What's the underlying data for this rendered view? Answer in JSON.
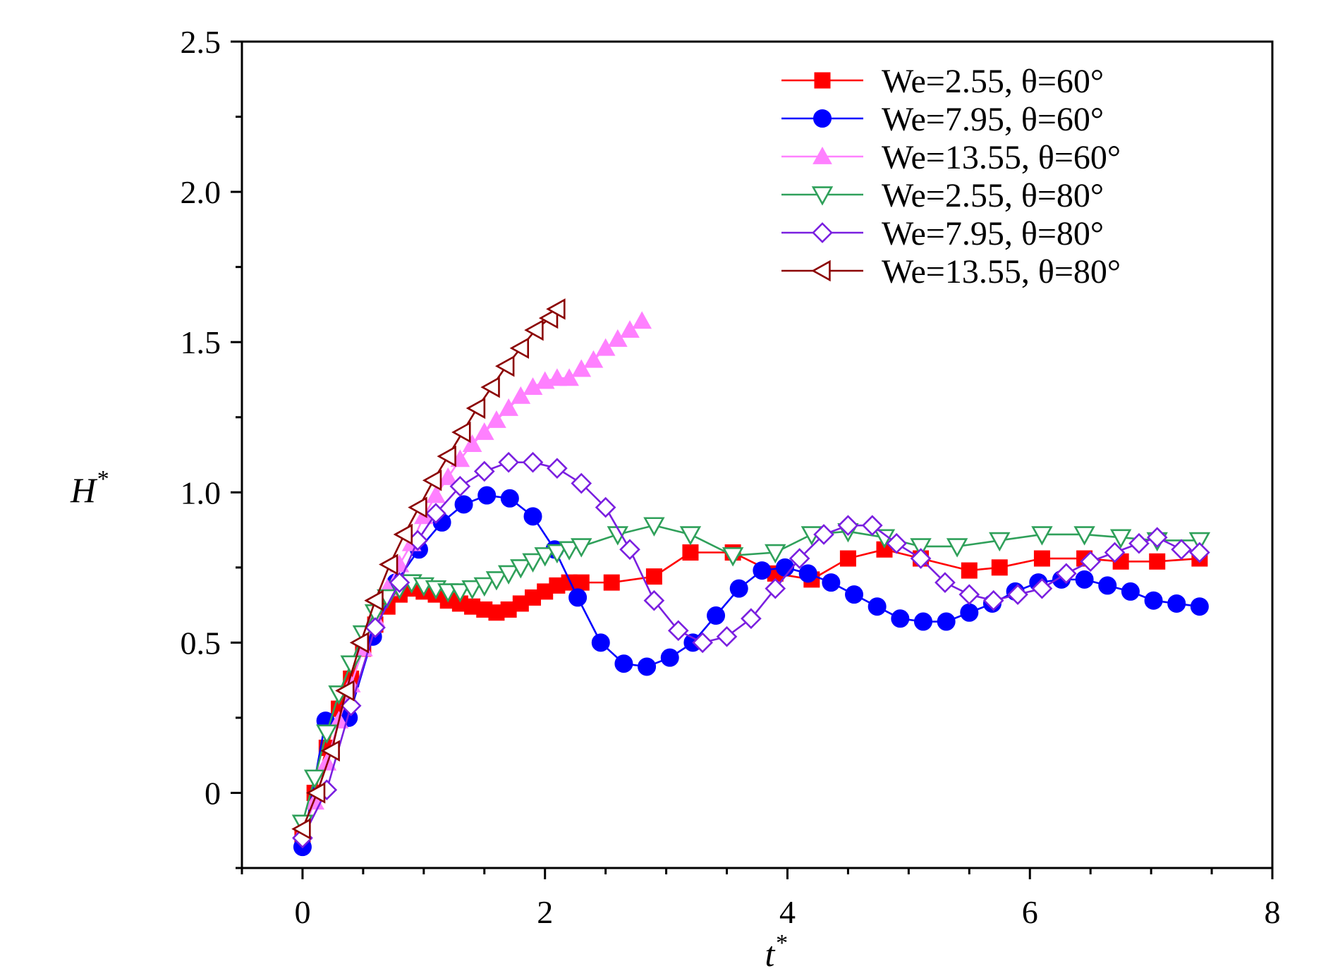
{
  "chart_data": {
    "type": "line",
    "xlabel": "t",
    "xlabel_sup": "*",
    "ylabel": "H",
    "ylabel_sup": "*",
    "xlim": [
      -0.5,
      8
    ],
    "ylim": [
      -0.25,
      2.5
    ],
    "xticks": [
      0,
      2,
      4,
      6,
      8
    ],
    "xtick_labels": [
      "0",
      "2",
      "4",
      "6",
      "8"
    ],
    "yticks": [
      0,
      0.5,
      1.0,
      1.5,
      2.0,
      2.5
    ],
    "ytick_labels": [
      "0",
      "0.5",
      "1.0",
      "1.5",
      "2.0",
      "2.5"
    ],
    "grid": false,
    "legend_position": "top-right",
    "series": [
      {
        "name": "We=2.55, θ=60°",
        "color": "#ff0000",
        "marker": "square-filled",
        "x": [
          0,
          0.1,
          0.2,
          0.3,
          0.4,
          0.5,
          0.6,
          0.7,
          0.8,
          0.9,
          1.0,
          1.1,
          1.2,
          1.3,
          1.4,
          1.5,
          1.6,
          1.7,
          1.8,
          1.9,
          2.0,
          2.1,
          2.2,
          2.3,
          2.55,
          2.9,
          3.2,
          3.55,
          3.9,
          4.2,
          4.5,
          4.8,
          5.1,
          5.5,
          5.75,
          6.1,
          6.45,
          6.75,
          7.05,
          7.4
        ],
        "y": [
          -0.15,
          0.0,
          0.15,
          0.28,
          0.38,
          0.48,
          0.56,
          0.62,
          0.66,
          0.68,
          0.67,
          0.66,
          0.64,
          0.63,
          0.62,
          0.61,
          0.6,
          0.61,
          0.63,
          0.65,
          0.67,
          0.69,
          0.7,
          0.7,
          0.7,
          0.72,
          0.8,
          0.8,
          0.73,
          0.71,
          0.78,
          0.81,
          0.78,
          0.74,
          0.75,
          0.78,
          0.78,
          0.77,
          0.77,
          0.78
        ]
      },
      {
        "name": "We=7.95, θ=60°",
        "color": "#0000ff",
        "marker": "circle-filled",
        "x": [
          0,
          0.19,
          0.38,
          0.58,
          0.77,
          0.96,
          1.15,
          1.33,
          1.52,
          1.71,
          1.9,
          2.08,
          2.27,
          2.46,
          2.65,
          2.84,
          3.03,
          3.22,
          3.41,
          3.6,
          3.79,
          3.98,
          4.17,
          4.36,
          4.55,
          4.74,
          4.93,
          5.12,
          5.31,
          5.5,
          5.69,
          5.88,
          6.07,
          6.26,
          6.45,
          6.64,
          6.83,
          7.02,
          7.21,
          7.4
        ],
        "y": [
          -0.18,
          0.24,
          0.25,
          0.52,
          0.7,
          0.81,
          0.9,
          0.96,
          0.99,
          0.98,
          0.92,
          0.81,
          0.65,
          0.5,
          0.43,
          0.42,
          0.45,
          0.5,
          0.59,
          0.68,
          0.74,
          0.75,
          0.73,
          0.7,
          0.66,
          0.62,
          0.58,
          0.57,
          0.57,
          0.6,
          0.63,
          0.67,
          0.7,
          0.71,
          0.71,
          0.69,
          0.67,
          0.64,
          0.63,
          0.62
        ]
      },
      {
        "name": "We=13.55, θ=60°",
        "color": "#ff80ff",
        "marker": "triangle-up-filled",
        "x": [
          0,
          0.1,
          0.2,
          0.3,
          0.4,
          0.5,
          0.6,
          0.7,
          0.8,
          0.9,
          1.0,
          1.1,
          1.2,
          1.3,
          1.4,
          1.5,
          1.6,
          1.7,
          1.8,
          1.9,
          2.0,
          2.1,
          2.2,
          2.3,
          2.4,
          2.5,
          2.6,
          2.7,
          2.8
        ],
        "y": [
          -0.13,
          -0.03,
          0.1,
          0.24,
          0.36,
          0.48,
          0.58,
          0.68,
          0.76,
          0.83,
          0.92,
          0.99,
          1.05,
          1.11,
          1.16,
          1.2,
          1.24,
          1.28,
          1.32,
          1.35,
          1.37,
          1.38,
          1.38,
          1.41,
          1.44,
          1.48,
          1.51,
          1.54,
          1.57
        ]
      },
      {
        "name": "We=2.55, θ=80°",
        "color": "#2fa05a",
        "marker": "triangle-down-open",
        "x": [
          0,
          0.1,
          0.2,
          0.3,
          0.4,
          0.5,
          0.6,
          0.7,
          0.8,
          0.9,
          1.0,
          1.1,
          1.2,
          1.3,
          1.4,
          1.5,
          1.6,
          1.7,
          1.8,
          1.9,
          2.0,
          2.1,
          2.2,
          2.3,
          2.6,
          2.9,
          3.2,
          3.55,
          3.9,
          4.2,
          4.5,
          4.8,
          5.1,
          5.4,
          5.75,
          6.1,
          6.45,
          6.75,
          7.05,
          7.4
        ],
        "y": [
          -0.1,
          0.05,
          0.2,
          0.33,
          0.43,
          0.53,
          0.6,
          0.65,
          0.68,
          0.7,
          0.69,
          0.68,
          0.67,
          0.67,
          0.68,
          0.69,
          0.71,
          0.73,
          0.75,
          0.77,
          0.79,
          0.8,
          0.81,
          0.82,
          0.86,
          0.89,
          0.86,
          0.79,
          0.8,
          0.86,
          0.87,
          0.85,
          0.82,
          0.82,
          0.84,
          0.86,
          0.86,
          0.85,
          0.84,
          0.84
        ]
      },
      {
        "name": "We=7.95, θ=80°",
        "color": "#7a1fe0",
        "marker": "diamond-open",
        "x": [
          0,
          0.2,
          0.4,
          0.6,
          0.8,
          0.95,
          1.1,
          1.3,
          1.5,
          1.7,
          1.9,
          2.1,
          2.3,
          2.5,
          2.7,
          2.9,
          3.1,
          3.3,
          3.5,
          3.7,
          3.9,
          4.1,
          4.3,
          4.5,
          4.7,
          4.9,
          5.1,
          5.3,
          5.5,
          5.7,
          5.9,
          6.1,
          6.3,
          6.5,
          6.7,
          6.9,
          7.05,
          7.25,
          7.4
        ],
        "y": [
          -0.15,
          0.01,
          0.29,
          0.55,
          0.7,
          0.84,
          0.93,
          1.02,
          1.07,
          1.1,
          1.1,
          1.08,
          1.03,
          0.95,
          0.81,
          0.64,
          0.54,
          0.5,
          0.52,
          0.58,
          0.68,
          0.78,
          0.86,
          0.89,
          0.89,
          0.83,
          0.78,
          0.7,
          0.66,
          0.64,
          0.66,
          0.68,
          0.73,
          0.77,
          0.8,
          0.83,
          0.85,
          0.81,
          0.8
        ]
      },
      {
        "name": "We=13.55, θ=80°",
        "color": "#8b0000",
        "marker": "triangle-left-open",
        "x": [
          0,
          0.12,
          0.24,
          0.36,
          0.48,
          0.6,
          0.72,
          0.84,
          0.96,
          1.08,
          1.2,
          1.32,
          1.44,
          1.56,
          1.68,
          1.8,
          1.92,
          2.04,
          2.1
        ],
        "y": [
          -0.12,
          0.0,
          0.14,
          0.34,
          0.5,
          0.64,
          0.76,
          0.86,
          0.95,
          1.04,
          1.12,
          1.2,
          1.28,
          1.35,
          1.42,
          1.48,
          1.54,
          1.58,
          1.61
        ]
      }
    ]
  }
}
